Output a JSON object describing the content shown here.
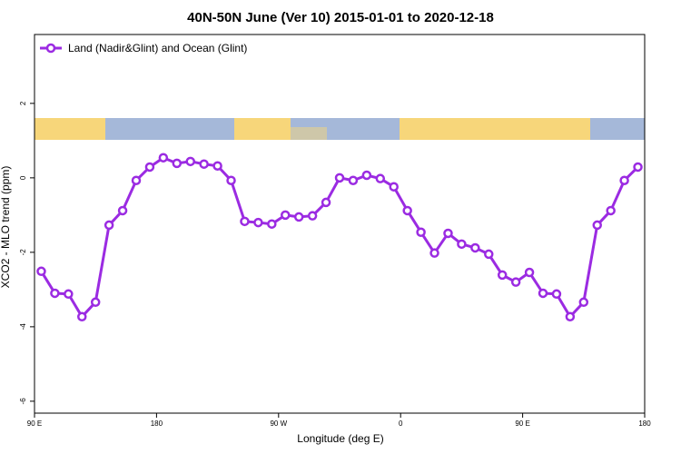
{
  "chart_data": {
    "type": "line",
    "title": "40N-50N June (Ver 10)   2015-01-01 to 2020-12-18",
    "x_label": "Longitude (deg E)",
    "y_label": "XCO2 - MLO trend (ppm)",
    "x": [
      95,
      105,
      115,
      125,
      135,
      145,
      155,
      165,
      175,
      185,
      195,
      205,
      215,
      225,
      235,
      245,
      255,
      265,
      275,
      285,
      295,
      305,
      315,
      325,
      335,
      345,
      355,
      365,
      375,
      385,
      395,
      405,
      415,
      425,
      435,
      445,
      455,
      465,
      475,
      485,
      495,
      505,
      515,
      525,
      535
    ],
    "series": [
      {
        "name": "Land (Nadir&Glint) and Ocean (Glint)",
        "color": "#9b2be2",
        "values": [
          -2.51,
          -3.1,
          -3.12,
          -3.73,
          -3.34,
          -1.27,
          -0.88,
          -0.07,
          0.29,
          0.54,
          0.39,
          0.44,
          0.37,
          0.32,
          -0.07,
          -1.17,
          -1.2,
          -1.24,
          -1.0,
          -1.05,
          -1.02,
          -0.66,
          0.0,
          -0.07,
          0.07,
          -0.02,
          -0.24,
          -0.88,
          -1.46,
          -2.02,
          -1.49,
          -1.78,
          -1.88,
          -2.05,
          -2.61,
          -2.8,
          -2.54,
          -3.1,
          -3.12,
          -3.73,
          -3.34,
          -1.27,
          -0.88,
          -0.07,
          0.29
        ]
      }
    ],
    "xlim": [
      90,
      540
    ],
    "xticks": [
      {
        "value": 90,
        "label": "90 E"
      },
      180,
      {
        "value": 270,
        "label": "90 W"
      },
      {
        "value": 360,
        "label": "0"
      },
      {
        "value": 450,
        "label": "90 E"
      },
      {
        "value": 540,
        "label": "180"
      }
    ],
    "ylim": [
      -6.32,
      3.85
    ],
    "yticks": [
      -6,
      -4,
      -2,
      0,
      2
    ],
    "legend": "top-left"
  }
}
